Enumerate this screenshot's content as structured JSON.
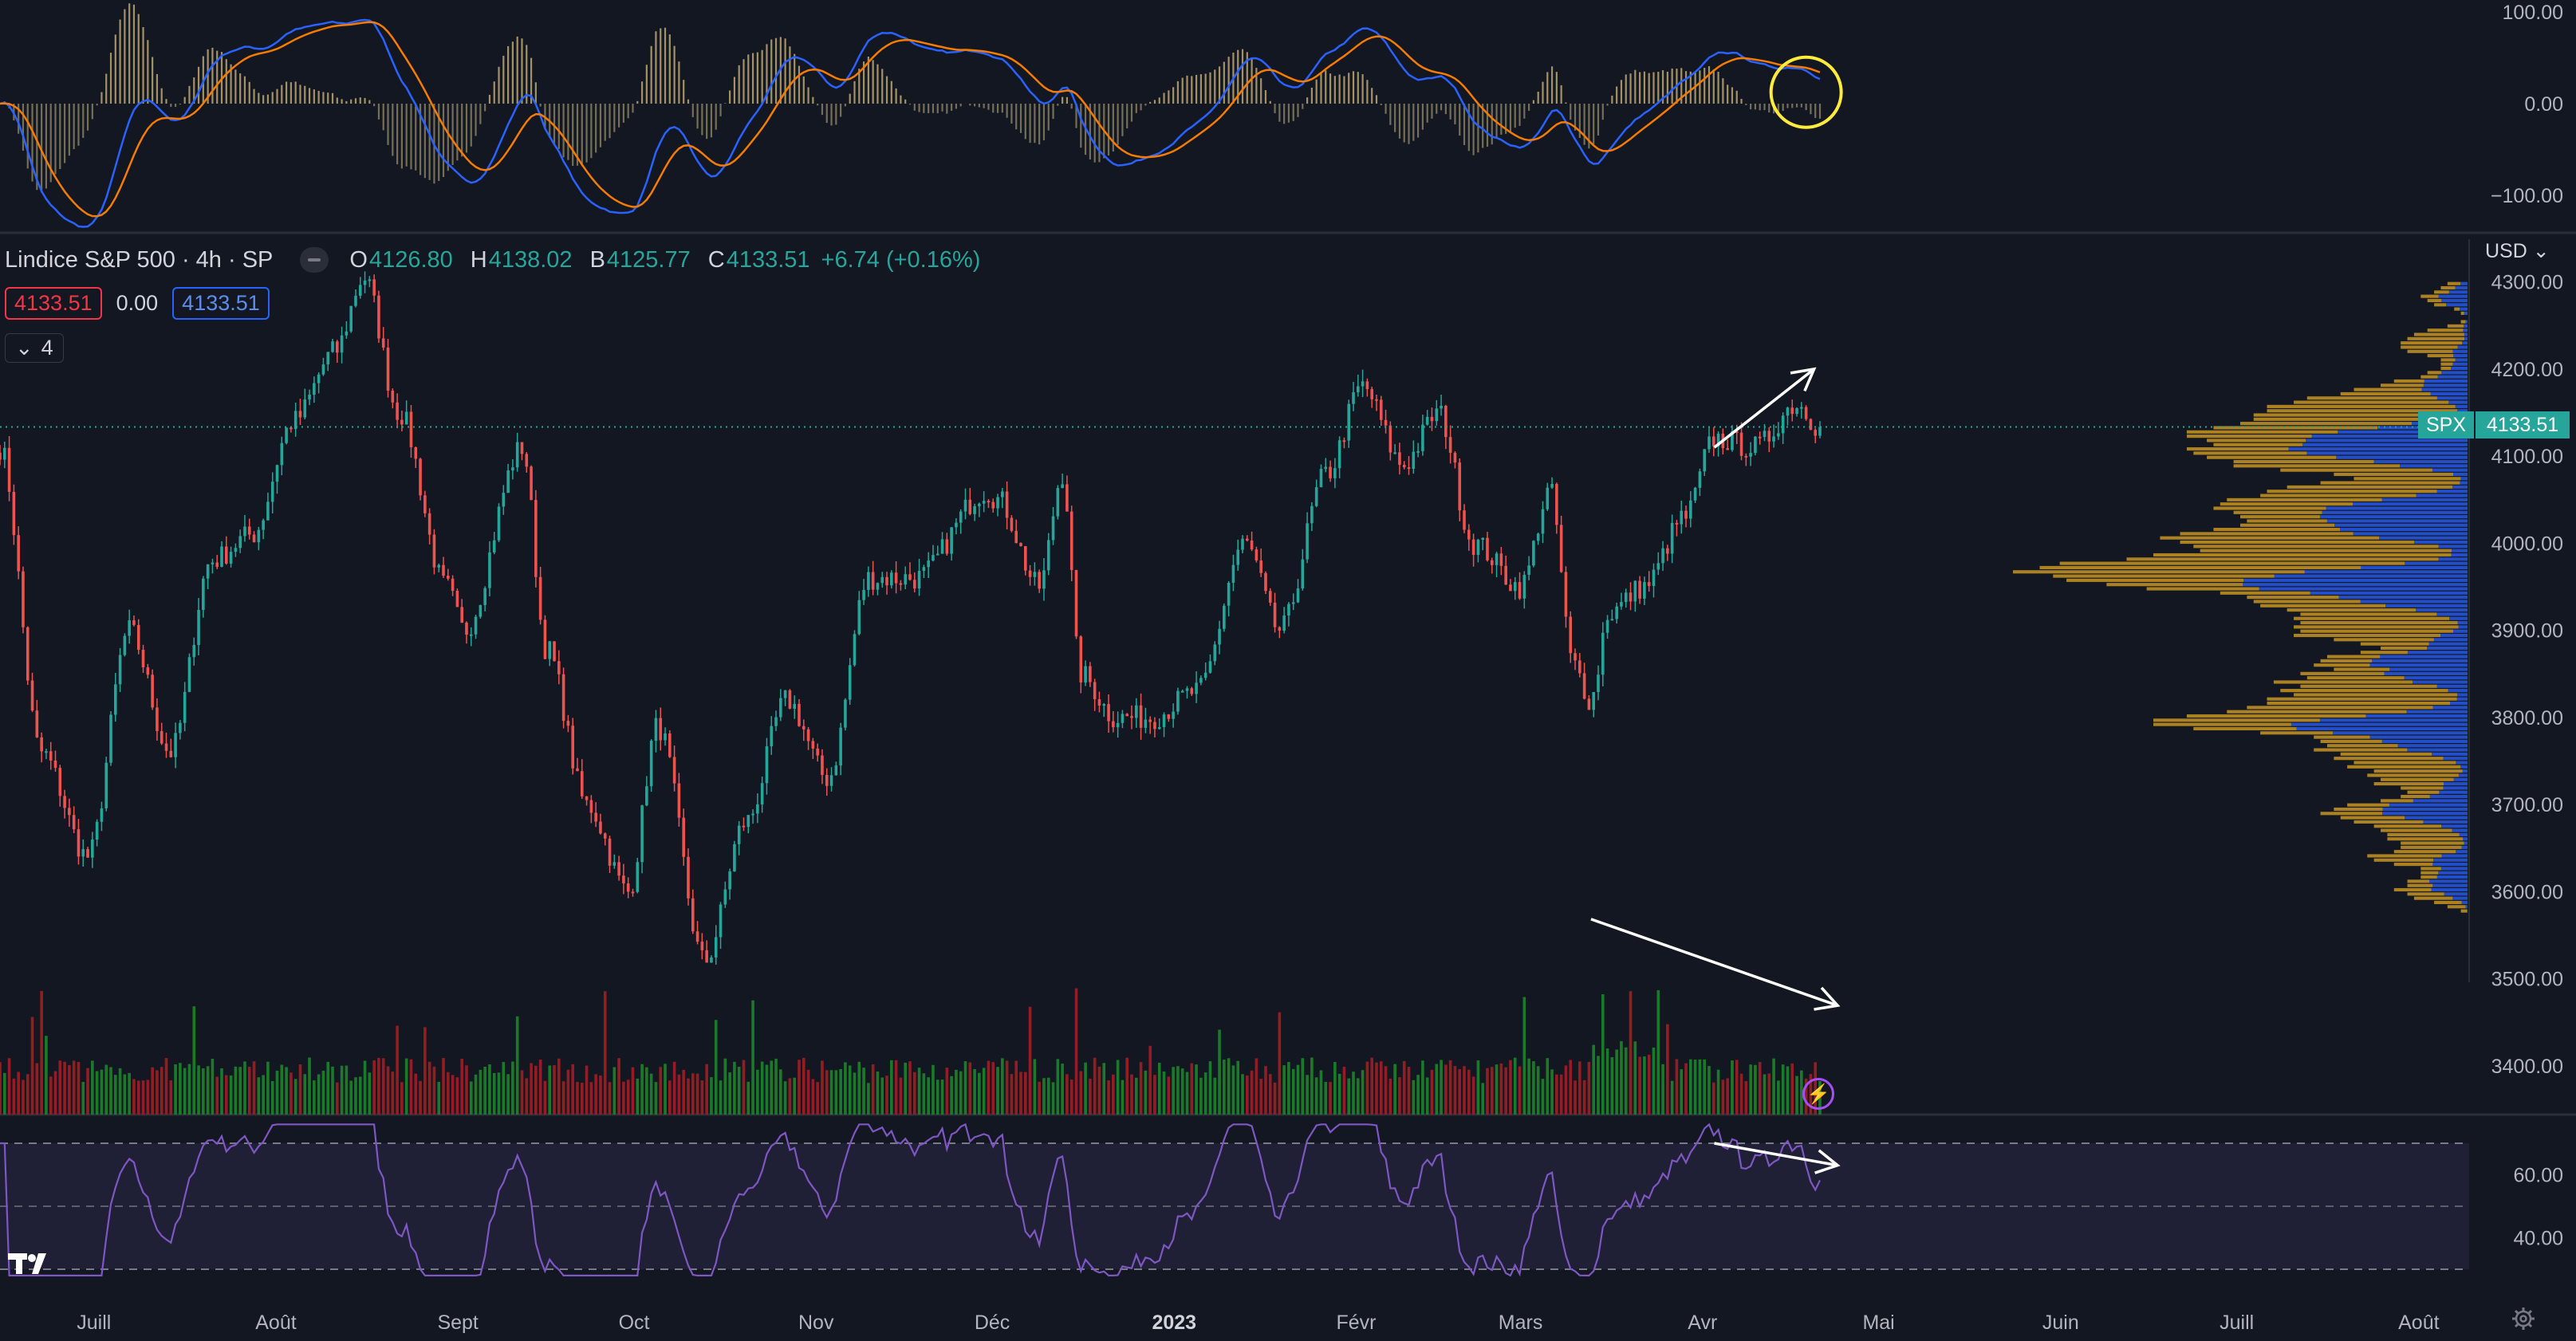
{
  "legend": {
    "title": "Lindice S&P 500 · 4h · SP",
    "ohlc": [
      {
        "key": "O",
        "value": "4126.80"
      },
      {
        "key": "H",
        "value": "4138.02"
      },
      {
        "key": "B",
        "value": "4125.77"
      },
      {
        "key": "C",
        "value": "4133.51"
      }
    ],
    "change": "+6.74 (+0.16%)",
    "bid": "4133.51",
    "spread": "0.00",
    "ask": "4133.51",
    "indicators_count": "4"
  },
  "currency": "USD",
  "price_scale": {
    "main_ticks": [
      "4300.00",
      "4200.00",
      "4100.00",
      "4000.00",
      "3900.00",
      "3800.00",
      "3700.00",
      "3600.00",
      "3500.00",
      "3400.00"
    ],
    "macd_ticks": [
      "100.00",
      "0.00",
      "−100.00"
    ],
    "rsi_ticks": [
      "60.00",
      "40.00"
    ],
    "last_symbol": "SPX",
    "last_value": "4133.51"
  },
  "time_axis": [
    "Juill",
    "Août",
    "Sept",
    "Oct",
    "Nov",
    "Déc",
    "2023",
    "Févr",
    "Mars",
    "Avr",
    "Mai",
    "Juin",
    "Juill",
    "Août"
  ],
  "colors": {
    "background": "#131722",
    "up": "#26a69a",
    "down": "#ef5350",
    "vol_up": "#1b7f2a",
    "vol_down": "#9b1d24",
    "macd": "#2962ff",
    "signal": "#f57c00",
    "rsi": "#7e57c2",
    "vp_up": "#2962ff",
    "vp_down": "#e0a521"
  },
  "chart_data": {
    "type": "candlestick",
    "symbol": "SPX",
    "interval": "4h",
    "y_range": [
      3400,
      4320
    ],
    "keypoints": [
      {
        "date": "2022-06-15",
        "close": 4110
      },
      {
        "date": "2022-06-22",
        "close": 3760
      },
      {
        "date": "2022-06-30",
        "close": 3640
      },
      {
        "date": "2022-07-07",
        "close": 3900
      },
      {
        "date": "2022-07-14",
        "close": 3760
      },
      {
        "date": "2022-07-21",
        "close": 3980
      },
      {
        "date": "2022-07-28",
        "close": 4010
      },
      {
        "date": "2022-08-04",
        "close": 4140
      },
      {
        "date": "2022-08-11",
        "close": 4220
      },
      {
        "date": "2022-08-16",
        "close": 4305
      },
      {
        "date": "2022-08-22",
        "close": 4150
      },
      {
        "date": "2022-08-30",
        "close": 3950
      },
      {
        "date": "2022-09-02",
        "close": 3900
      },
      {
        "date": "2022-09-12",
        "close": 4110
      },
      {
        "date": "2022-09-16",
        "close": 3880
      },
      {
        "date": "2022-09-23",
        "close": 3700
      },
      {
        "date": "2022-09-30",
        "close": 3600
      },
      {
        "date": "2022-10-05",
        "close": 3790
      },
      {
        "date": "2022-10-13",
        "close": 3520
      },
      {
        "date": "2022-10-20",
        "close": 3680
      },
      {
        "date": "2022-10-27",
        "close": 3820
      },
      {
        "date": "2022-11-03",
        "close": 3730
      },
      {
        "date": "2022-11-10",
        "close": 3960
      },
      {
        "date": "2022-11-18",
        "close": 3960
      },
      {
        "date": "2022-11-30",
        "close": 4060
      },
      {
        "date": "2022-12-02",
        "close": 4050
      },
      {
        "date": "2022-12-09",
        "close": 3950
      },
      {
        "date": "2022-12-13",
        "close": 4080
      },
      {
        "date": "2022-12-16",
        "close": 3850
      },
      {
        "date": "2022-12-22",
        "close": 3800
      },
      {
        "date": "2022-12-28",
        "close": 3800
      },
      {
        "date": "2023-01-05",
        "close": 3830
      },
      {
        "date": "2023-01-13",
        "close": 4000
      },
      {
        "date": "2023-01-19",
        "close": 3900
      },
      {
        "date": "2023-01-27",
        "close": 4080
      },
      {
        "date": "2023-02-02",
        "close": 4180
      },
      {
        "date": "2023-02-09",
        "close": 4090
      },
      {
        "date": "2023-02-15",
        "close": 4150
      },
      {
        "date": "2023-02-21",
        "close": 4000
      },
      {
        "date": "2023-03-01",
        "close": 3950
      },
      {
        "date": "2023-03-06",
        "close": 4060
      },
      {
        "date": "2023-03-10",
        "close": 3860
      },
      {
        "date": "2023-03-13",
        "close": 3820
      },
      {
        "date": "2023-03-16",
        "close": 3920
      },
      {
        "date": "2023-03-22",
        "close": 3950
      },
      {
        "date": "2023-03-29",
        "close": 4030
      },
      {
        "date": "2023-04-03",
        "close": 4120
      },
      {
        "date": "2023-04-10",
        "close": 4110
      },
      {
        "date": "2023-04-17",
        "close": 4160
      },
      {
        "date": "2023-04-21",
        "close": 4133.51
      }
    ],
    "annotations": [
      {
        "type": "arrow",
        "panel": "price",
        "from": {
          "date": "2023-04-03",
          "y": 4110
        },
        "to": {
          "date": "2023-04-20",
          "y": 4200
        }
      },
      {
        "type": "arrow",
        "panel": "volume",
        "from": {
          "date": "2023-03-13",
          "value": 0.86
        },
        "to": {
          "date": "2023-04-24",
          "value": 0.48
        }
      },
      {
        "type": "arrow",
        "panel": "rsi",
        "from": {
          "date": "2023-04-03",
          "value": 70
        },
        "to": {
          "date": "2023-04-24",
          "value": 63
        }
      },
      {
        "type": "circle",
        "panel": "macd",
        "at": {
          "date": "2023-04-20",
          "value": 42
        }
      }
    ]
  }
}
